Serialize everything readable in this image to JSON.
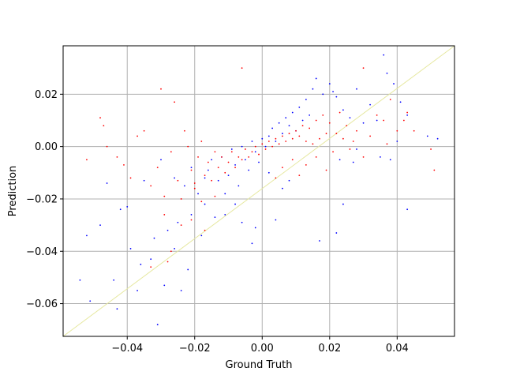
{
  "chart_data": {
    "type": "scatter",
    "title": "",
    "xlabel": "Ground Truth",
    "ylabel": "Prediction",
    "xlim": [
      -0.059,
      0.057
    ],
    "ylim": [
      -0.0725,
      0.0385
    ],
    "x_ticks": [
      -0.04,
      -0.02,
      0.0,
      0.02,
      0.04
    ],
    "x_tick_labels": [
      "−0.04",
      "−0.02",
      "0.00",
      "0.02",
      "0.04"
    ],
    "y_ticks": [
      -0.06,
      -0.04,
      -0.02,
      0.0,
      0.02
    ],
    "y_tick_labels": [
      "−0.06",
      "−0.04",
      "−0.02",
      "0.00",
      "0.02"
    ],
    "grid": true,
    "reference_line": {
      "x": [
        -0.059,
        0.057
      ],
      "y": [
        -0.0725,
        0.0385
      ],
      "color": "#e6e8a0"
    },
    "series": [
      {
        "color": "#0000ff",
        "points": [
          [
            -0.052,
            -0.034
          ],
          [
            -0.051,
            -0.059
          ],
          [
            -0.054,
            -0.051
          ],
          [
            -0.044,
            -0.051
          ],
          [
            -0.043,
            -0.062
          ],
          [
            -0.042,
            -0.024
          ],
          [
            -0.039,
            -0.039
          ],
          [
            -0.036,
            -0.045
          ],
          [
            -0.037,
            -0.055
          ],
          [
            -0.033,
            -0.043
          ],
          [
            -0.031,
            -0.068
          ],
          [
            -0.032,
            -0.035
          ],
          [
            -0.029,
            -0.053
          ],
          [
            -0.028,
            -0.032
          ],
          [
            -0.026,
            -0.039
          ],
          [
            -0.025,
            -0.029
          ],
          [
            -0.024,
            -0.055
          ],
          [
            -0.022,
            -0.047
          ],
          [
            -0.021,
            -0.026
          ],
          [
            -0.019,
            -0.018
          ],
          [
            -0.018,
            -0.034
          ],
          [
            -0.017,
            -0.022
          ],
          [
            -0.016,
            -0.009
          ],
          [
            -0.014,
            -0.027
          ],
          [
            -0.013,
            -0.013
          ],
          [
            -0.012,
            -0.004
          ],
          [
            -0.011,
            -0.018
          ],
          [
            -0.01,
            -0.011
          ],
          [
            -0.009,
            -0.001
          ],
          [
            -0.008,
            -0.007
          ],
          [
            -0.007,
            -0.015
          ],
          [
            -0.006,
            0.0
          ],
          [
            -0.005,
            -0.005
          ],
          [
            -0.004,
            -0.009
          ],
          [
            -0.003,
            0.002
          ],
          [
            -0.002,
            -0.002
          ],
          [
            -0.001,
            -0.006
          ],
          [
            0.0,
            0.003
          ],
          [
            0.001,
            0.0
          ],
          [
            0.002,
            0.004
          ],
          [
            0.003,
            0.007
          ],
          [
            0.004,
            0.002
          ],
          [
            0.005,
            0.009
          ],
          [
            0.006,
            0.005
          ],
          [
            0.007,
            0.011
          ],
          [
            0.008,
            0.008
          ],
          [
            0.009,
            0.013
          ],
          [
            0.01,
            0.006
          ],
          [
            0.011,
            0.015
          ],
          [
            0.012,
            0.01
          ],
          [
            0.013,
            0.018
          ],
          [
            0.014,
            0.012
          ],
          [
            0.015,
            0.022
          ],
          [
            0.016,
            0.026
          ],
          [
            0.018,
            0.02
          ],
          [
            0.02,
            0.024
          ],
          [
            0.022,
            0.019
          ],
          [
            0.024,
            0.014
          ],
          [
            0.026,
            0.011
          ],
          [
            0.028,
            0.022
          ],
          [
            0.03,
            0.009
          ],
          [
            0.032,
            0.016
          ],
          [
            0.034,
            0.01
          ],
          [
            0.036,
            0.035
          ],
          [
            0.037,
            0.028
          ],
          [
            0.039,
            0.024
          ],
          [
            0.041,
            0.017
          ],
          [
            0.043,
            0.012
          ],
          [
            0.038,
            -0.005
          ],
          [
            0.04,
            0.002
          ],
          [
            0.035,
            -0.004
          ],
          [
            0.028,
            -0.001
          ],
          [
            0.023,
            -0.005
          ],
          [
            0.021,
            0.021
          ],
          [
            0.017,
            -0.036
          ],
          [
            0.022,
            -0.033
          ],
          [
            0.024,
            -0.022
          ],
          [
            0.027,
            -0.006
          ],
          [
            0.043,
            -0.024
          ],
          [
            0.049,
            0.004
          ],
          [
            0.052,
            0.003
          ],
          [
            0.008,
            -0.013
          ],
          [
            0.006,
            -0.016
          ],
          [
            0.004,
            -0.028
          ],
          [
            0.002,
            -0.01
          ],
          [
            -0.002,
            -0.031
          ],
          [
            -0.003,
            -0.037
          ],
          [
            -0.006,
            -0.029
          ],
          [
            -0.008,
            -0.022
          ],
          [
            -0.011,
            -0.026
          ],
          [
            -0.015,
            -0.005
          ],
          [
            -0.017,
            -0.012
          ],
          [
            -0.021,
            -0.008
          ],
          [
            -0.023,
            -0.015
          ],
          [
            -0.026,
            -0.012
          ],
          [
            -0.03,
            -0.005
          ],
          [
            -0.035,
            -0.013
          ],
          [
            -0.04,
            -0.023
          ],
          [
            -0.046,
            -0.014
          ],
          [
            -0.048,
            -0.03
          ]
        ]
      },
      {
        "color": "#ff0000",
        "points": [
          [
            -0.048,
            0.011
          ],
          [
            -0.047,
            0.008
          ],
          [
            -0.046,
            0.0
          ],
          [
            -0.052,
            -0.005
          ],
          [
            -0.043,
            -0.004
          ],
          [
            -0.041,
            -0.007
          ],
          [
            -0.039,
            -0.012
          ],
          [
            -0.037,
            0.004
          ],
          [
            -0.035,
            0.006
          ],
          [
            -0.033,
            -0.015
          ],
          [
            -0.031,
            -0.008
          ],
          [
            -0.03,
            0.022
          ],
          [
            -0.029,
            -0.019
          ],
          [
            -0.027,
            -0.002
          ],
          [
            -0.026,
            0.017
          ],
          [
            -0.025,
            -0.013
          ],
          [
            -0.024,
            -0.02
          ],
          [
            -0.023,
            0.006
          ],
          [
            -0.022,
            0.0
          ],
          [
            -0.021,
            -0.009
          ],
          [
            -0.02,
            -0.014
          ],
          [
            -0.019,
            -0.004
          ],
          [
            -0.018,
            0.002
          ],
          [
            -0.017,
            -0.011
          ],
          [
            -0.016,
            -0.006
          ],
          [
            -0.015,
            -0.013
          ],
          [
            -0.014,
            -0.002
          ],
          [
            -0.013,
            -0.008
          ],
          [
            -0.012,
            -0.004
          ],
          [
            -0.011,
            -0.01
          ],
          [
            -0.01,
            -0.006
          ],
          [
            -0.009,
            -0.002
          ],
          [
            -0.008,
            -0.008
          ],
          [
            -0.007,
            -0.004
          ],
          [
            -0.006,
            -0.005
          ],
          [
            -0.005,
            -0.001
          ],
          [
            -0.004,
            -0.004
          ],
          [
            -0.003,
            -0.002
          ],
          [
            -0.002,
            0.0
          ],
          [
            -0.001,
            -0.003
          ],
          [
            0.0,
            0.001
          ],
          [
            0.001,
            -0.001
          ],
          [
            0.002,
            0.002
          ],
          [
            0.003,
            0.0
          ],
          [
            0.004,
            0.003
          ],
          [
            0.005,
            0.001
          ],
          [
            0.006,
            0.004
          ],
          [
            0.007,
            0.002
          ],
          [
            0.008,
            0.005
          ],
          [
            0.009,
            0.003
          ],
          [
            0.01,
            0.006
          ],
          [
            0.011,
            0.004
          ],
          [
            0.012,
            0.008
          ],
          [
            0.013,
            0.002
          ],
          [
            0.014,
            0.007
          ],
          [
            0.015,
            0.001
          ],
          [
            0.016,
            0.01
          ],
          [
            0.017,
            0.003
          ],
          [
            0.018,
            0.012
          ],
          [
            0.019,
            0.005
          ],
          [
            0.02,
            0.009
          ],
          [
            0.021,
            -0.002
          ],
          [
            0.022,
            0.005
          ],
          [
            0.023,
            0.013
          ],
          [
            0.024,
            0.003
          ],
          [
            0.025,
            0.008
          ],
          [
            0.026,
            -0.001
          ],
          [
            0.027,
            0.002
          ],
          [
            0.028,
            0.006
          ],
          [
            0.03,
            -0.004
          ],
          [
            0.032,
            0.004
          ],
          [
            0.034,
            0.012
          ],
          [
            0.036,
            0.01
          ],
          [
            0.037,
            0.001
          ],
          [
            0.038,
            0.018
          ],
          [
            0.04,
            0.006
          ],
          [
            0.042,
            0.01
          ],
          [
            0.043,
            0.013
          ],
          [
            0.045,
            0.006
          ],
          [
            0.051,
            -0.009
          ],
          [
            0.05,
            -0.001
          ],
          [
            0.03,
            0.03
          ],
          [
            -0.006,
            0.03
          ],
          [
            -0.02,
            -0.016
          ],
          [
            -0.018,
            -0.021
          ],
          [
            -0.014,
            -0.019
          ],
          [
            -0.024,
            -0.03
          ],
          [
            -0.029,
            -0.026
          ],
          [
            -0.033,
            -0.046
          ],
          [
            -0.028,
            -0.044
          ],
          [
            -0.027,
            -0.04
          ],
          [
            -0.021,
            -0.028
          ],
          [
            -0.017,
            -0.032
          ],
          [
            0.011,
            -0.011
          ],
          [
            0.006,
            -0.008
          ],
          [
            0.004,
            -0.012
          ],
          [
            0.009,
            -0.005
          ],
          [
            0.013,
            -0.007
          ],
          [
            0.016,
            -0.004
          ],
          [
            0.019,
            -0.009
          ]
        ]
      }
    ]
  }
}
